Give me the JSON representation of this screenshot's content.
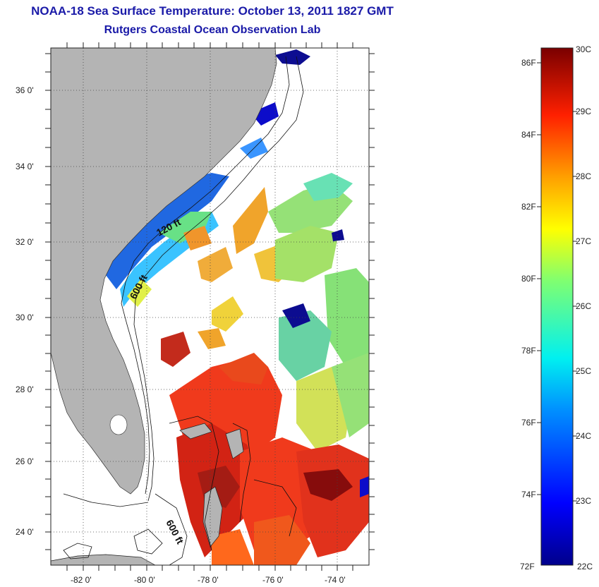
{
  "header": {
    "title": "NOAA-18 Sea Surface Temperature:  October 13, 2011 1827 GMT",
    "subtitle": "Rutgers Coastal Ocean Observation Lab"
  },
  "map": {
    "lat_ticks": [
      "36 0'",
      "34 0'",
      "32 0'",
      "30 0'",
      "28 0'",
      "26 0'",
      "24 0'"
    ],
    "lon_ticks": [
      "-82 0'",
      "-80 0'",
      "-78 0'",
      "-76 0'",
      "-74 0'"
    ],
    "contour_labels": [
      "120 ft",
      "600 ft",
      "600 ft"
    ],
    "colors": {
      "land": "#b4b4b4",
      "ocean": "#ffffff",
      "title": "#1a1aa8"
    }
  },
  "colorbar": {
    "fahrenheit": [
      "86F",
      "84F",
      "82F",
      "80F",
      "78F",
      "76F",
      "74F",
      "72F"
    ],
    "celsius": [
      "30C",
      "29C",
      "28C",
      "27C",
      "26C",
      "25C",
      "24C",
      "23C",
      "22C"
    ],
    "range_c": [
      22,
      30
    ],
    "colormap": "jet"
  }
}
